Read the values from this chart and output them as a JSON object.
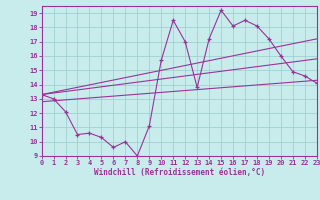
{
  "xlabel": "Windchill (Refroidissement éolien,°C)",
  "bg_color": "#c8ecec",
  "line_color": "#993399",
  "grid_color": "#99cccc",
  "data_x": [
    0,
    1,
    2,
    3,
    4,
    5,
    6,
    7,
    8,
    9,
    10,
    11,
    12,
    13,
    14,
    15,
    16,
    17,
    18,
    19,
    20,
    21,
    22,
    23
  ],
  "data_y": [
    13.3,
    13.0,
    12.1,
    10.5,
    10.6,
    10.3,
    9.6,
    10.0,
    9.0,
    11.1,
    15.7,
    18.5,
    17.0,
    13.8,
    17.2,
    19.2,
    18.1,
    18.5,
    18.1,
    17.2,
    16.0,
    14.9,
    14.6,
    14.1
  ],
  "trend1_x": [
    0,
    23
  ],
  "trend1_y": [
    13.3,
    17.2
  ],
  "trend2_x": [
    0,
    23
  ],
  "trend2_y": [
    13.3,
    15.8
  ],
  "trend3_x": [
    0,
    23
  ],
  "trend3_y": [
    12.8,
    14.3
  ],
  "xlim": [
    0,
    23
  ],
  "ylim": [
    9,
    19.5
  ],
  "xticks": [
    0,
    1,
    2,
    3,
    4,
    5,
    6,
    7,
    8,
    9,
    10,
    11,
    12,
    13,
    14,
    15,
    16,
    17,
    18,
    19,
    20,
    21,
    22,
    23
  ],
  "yticks": [
    9,
    10,
    11,
    12,
    13,
    14,
    15,
    16,
    17,
    18,
    19
  ],
  "tick_fontsize": 5.0,
  "xlabel_fontsize": 5.5
}
